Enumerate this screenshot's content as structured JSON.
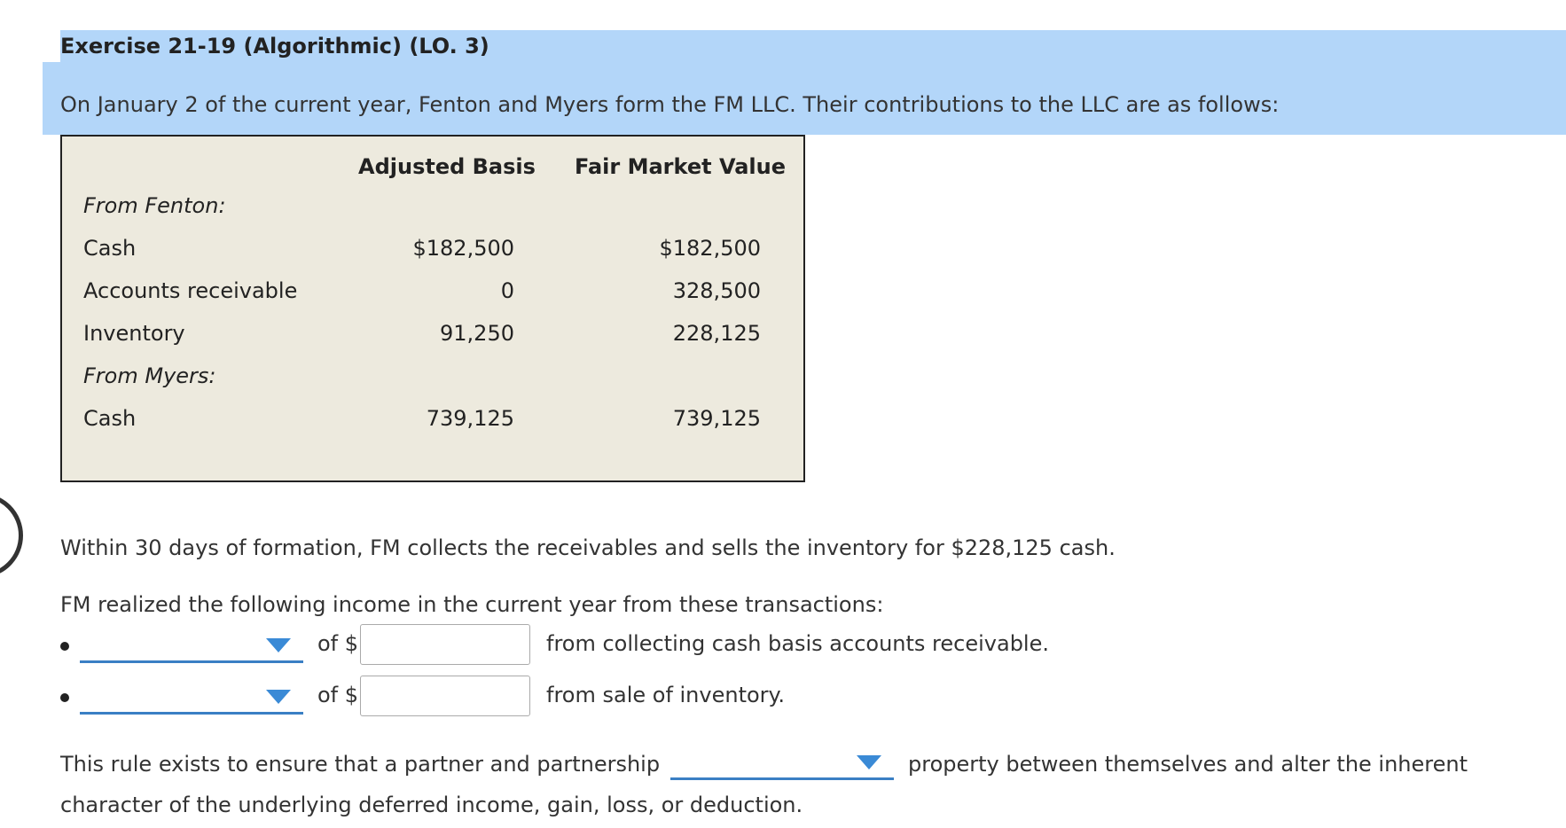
{
  "exercise": {
    "title": "Exercise 21-19 (Algorithmic) (LO. 3)",
    "intro": "On January 2 of the current year, Fenton and Myers form the FM LLC. Their contributions to the LLC are as follows:"
  },
  "contributions": {
    "headers": [
      "Adjusted Basis",
      "Fair Market Value"
    ],
    "rows": [
      {
        "label": "From Fenton:",
        "basis": "",
        "fmv": ""
      },
      {
        "label": "Cash",
        "basis": "$182,500",
        "fmv": "$182,500"
      },
      {
        "label": "Accounts receivable",
        "basis": "0",
        "fmv": "328,500"
      },
      {
        "label": "Inventory",
        "basis": "91,250",
        "fmv": "228,125"
      },
      {
        "label": "From Myers:",
        "basis": "",
        "fmv": ""
      },
      {
        "label": "Cash",
        "basis": "739,125",
        "fmv": "739,125"
      }
    ]
  },
  "body": {
    "collection_text": "Within 30 days of formation, FM collects the receivables and sells the inventory for $228,125 cash.",
    "income_prompt": "FM realized the following income in the current year from these transactions:"
  },
  "answers": [
    {
      "dropdown_value": "",
      "of_label": "of $",
      "amount_value": "",
      "after_text": "from collecting cash basis accounts receivable."
    },
    {
      "dropdown_value": "",
      "of_label": "of $",
      "amount_value": "",
      "after_text": "from sale of inventory."
    }
  ],
  "rule": {
    "before": "This rule exists to ensure that a partner and partnership",
    "dropdown_value": "",
    "after": "property between themselves and alter the inherent",
    "line2": "character of the underlying deferred income, gain, loss, or deduction."
  },
  "colors": {
    "header_band": "#b3d6f9",
    "table_bg": "#edeade",
    "dropdown_accent": "#3a8ad6"
  }
}
